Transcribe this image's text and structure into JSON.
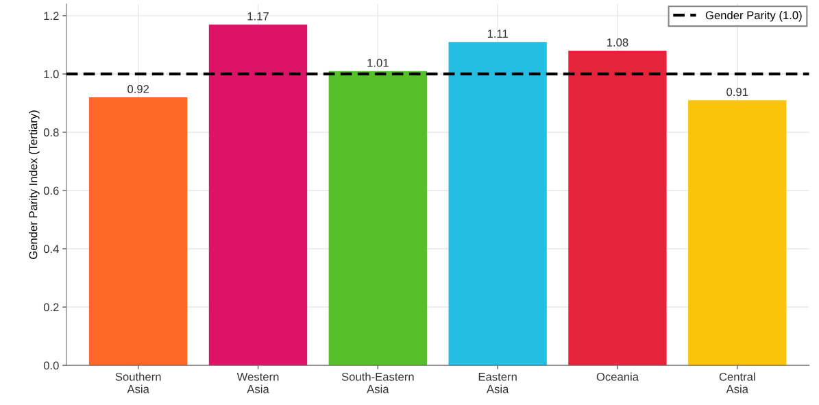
{
  "chart_data": {
    "type": "bar",
    "ylabel": "Gender Parity Index (Tertiary)",
    "categories": [
      "Southern\nAsia",
      "Western\nAsia",
      "South-Eastern\nAsia",
      "Eastern\nAsia",
      "Oceania",
      "Central\nAsia"
    ],
    "values": [
      0.92,
      1.17,
      1.01,
      1.11,
      1.08,
      0.91
    ],
    "colors": [
      "#fd6925",
      "#dd1367",
      "#56c02b",
      "#26bde2",
      "#e5243b",
      "#fcc30b"
    ],
    "data_labels": true,
    "ylim": [
      0,
      1.24
    ],
    "yticks": [
      {
        "value": 0,
        "label": "0.0"
      },
      0.2,
      0.4,
      0.6,
      0.8,
      {
        "value": 1,
        "label": "1.0"
      },
      1.2
    ],
    "ref_lines": [
      {
        "axis": "y",
        "value": 1.0,
        "label": "Gender Parity (1.0)",
        "color": "#000000",
        "line_style": "dashed"
      }
    ],
    "grid": true,
    "legend": "top right"
  }
}
